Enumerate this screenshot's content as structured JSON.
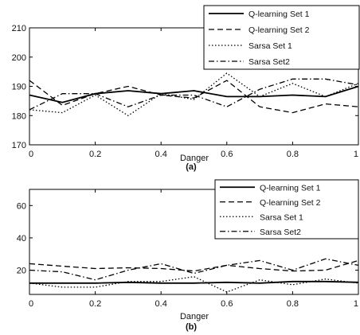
{
  "chart_data": [
    {
      "type": "line",
      "panel_label": "(a)",
      "xlabel": "Danger",
      "ylabel": "",
      "xlim": [
        0,
        1
      ],
      "ylim": [
        170,
        210
      ],
      "xticks": [
        0,
        0.2,
        0.4,
        0.6,
        0.8,
        1
      ],
      "xtick_labels": [
        "0",
        "0.2",
        "0.4",
        "0.6",
        "0.8",
        "1"
      ],
      "yticks": [
        170,
        180,
        190,
        200,
        210
      ],
      "ytick_labels": [
        "170",
        "180",
        "190",
        "200",
        "210"
      ],
      "grid": false,
      "legend_position": "top-right",
      "x": [
        0,
        0.1,
        0.2,
        0.3,
        0.4,
        0.5,
        0.6,
        0.7,
        0.8,
        0.9,
        1.0
      ],
      "series": [
        {
          "name": "Q-learning Set 1",
          "style": "solid",
          "values": [
            187,
            184.5,
            187.5,
            188.5,
            187.5,
            188.5,
            186.5,
            186.5,
            187,
            186.5,
            190
          ]
        },
        {
          "name": "Q-learning Set 2",
          "style": "dashed",
          "values": [
            192,
            183.5,
            187.5,
            190,
            187,
            186,
            192,
            183,
            181,
            184,
            183
          ]
        },
        {
          "name": "Sarsa Set 1",
          "style": "dotted",
          "values": [
            182,
            181,
            187,
            180,
            187.5,
            185.5,
            194.5,
            186.5,
            191,
            186.5,
            191
          ]
        },
        {
          "name": "Sarsa Set2",
          "style": "dashdot",
          "values": [
            182,
            187.5,
            187.5,
            183,
            187,
            187,
            183,
            189,
            192.5,
            192.5,
            190.5
          ]
        }
      ]
    },
    {
      "type": "line",
      "panel_label": "(b)",
      "xlabel": "Danger",
      "ylabel": "",
      "xlim": [
        0,
        1
      ],
      "ylim": [
        5,
        70
      ],
      "xticks": [
        0,
        0.2,
        0.4,
        0.6,
        0.8,
        1
      ],
      "xtick_labels": [
        "0",
        "0.2",
        "0.4",
        "0.6",
        "0.8",
        "1"
      ],
      "yticks": [
        20,
        40,
        60
      ],
      "ytick_labels": [
        "20",
        "40",
        "60"
      ],
      "grid": false,
      "legend_position": "top-right",
      "x": [
        0,
        0.1,
        0.2,
        0.3,
        0.4,
        0.5,
        0.6,
        0.7,
        0.8,
        0.9,
        1.0
      ],
      "series": [
        {
          "name": "Q-learning Set 1",
          "style": "solid",
          "values": [
            12,
            12,
            12,
            12.5,
            12,
            12,
            12.5,
            12,
            13,
            13,
            12.5
          ]
        },
        {
          "name": "Q-learning Set 2",
          "style": "dashed",
          "values": [
            24,
            22.5,
            21,
            21.5,
            21,
            19.5,
            23,
            21,
            19.5,
            20,
            26
          ]
        },
        {
          "name": "Sarsa Set 1",
          "style": "dotted",
          "values": [
            12,
            9.5,
            9.5,
            13,
            13,
            16,
            6.5,
            14,
            11,
            14.5,
            12
          ]
        },
        {
          "name": "Sarsa Set2",
          "style": "dashdot",
          "values": [
            20,
            19,
            14,
            20,
            24,
            18,
            23,
            26,
            20,
            27,
            23
          ]
        }
      ]
    }
  ]
}
